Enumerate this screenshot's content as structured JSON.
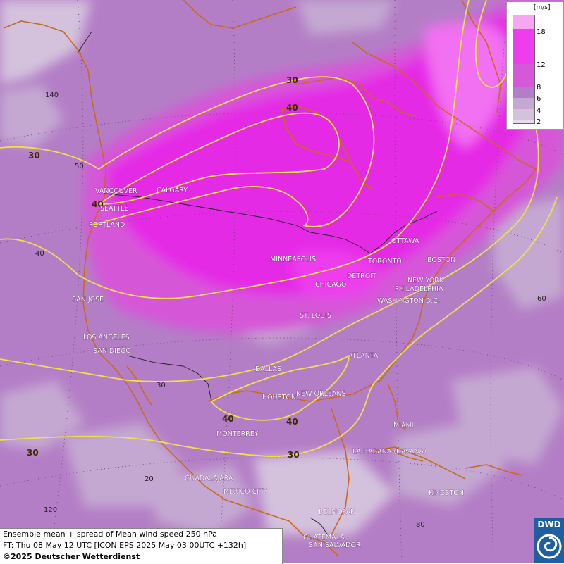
{
  "map": {
    "colors": {
      "low": "#d4c2dd",
      "mid_low": "#c4a8d2",
      "mid": "#b47ec6",
      "mid_high": "#d657d8",
      "high": "#e52be6",
      "very_high": "#f26ff2",
      "contour": "#f0e04a",
      "coast": "#c96a1a",
      "border": "#222222"
    },
    "contour_labels": [
      "30",
      "40",
      "40",
      "30",
      "40",
      "40",
      "30",
      "30",
      "40",
      "30"
    ],
    "grid_labels": [
      "140",
      "50",
      "40",
      "30",
      "20",
      "120",
      "60",
      "80"
    ],
    "cities": [
      "VANCOUVER",
      "CALGARY",
      "SEATTLE",
      "PORTLAND",
      "SAN JOSE",
      "LOS ANGELES",
      "SAN DIEGO",
      "MINNEAPOLIS",
      "TORONTO",
      "OTTAWA",
      "DETROIT",
      "CHICAGO",
      "BOSTON",
      "NEW YORK",
      "PHILADELPHIA",
      "WASHINGTON D.C.",
      "ST. LOUIS",
      "ATLANTA",
      "DALLAS",
      "HOUSTON",
      "NEW ORLEANS",
      "MIAMI",
      "MONTERREY",
      "LA HABANA (HAVANA)",
      "GUADALAJARA",
      "MEXICO CITY",
      "KINGSTON",
      "BELMOPAN",
      "GUATEMALA",
      "SAN SALVADOR"
    ]
  },
  "legend": {
    "unit": "[m/s]",
    "labels": [
      "18",
      "12",
      "8",
      "6",
      "4",
      "2"
    ],
    "colors": [
      "#f7a6f2",
      "#ee3ded",
      "#d657d8",
      "#b47ec6",
      "#c4a8d2",
      "#d4c2dd",
      "#e8dcef"
    ]
  },
  "info": {
    "line1": "Ensemble mean + spread of Mean wind speed 250 hPa",
    "line2": "FT: Thu 08 May 12 UTC [ICON EPS 2025 May 03 00UTC +132h]",
    "line3": "©2025 Deutscher Wetterdienst"
  },
  "logo": {
    "text": "DWD"
  }
}
